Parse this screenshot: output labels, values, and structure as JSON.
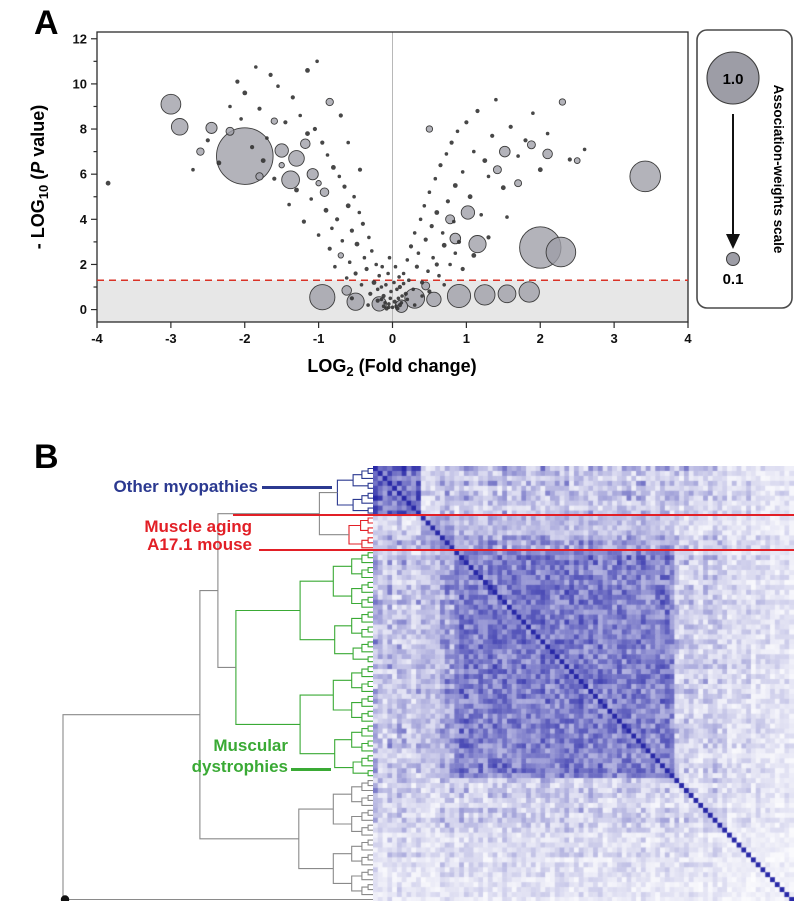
{
  "chart_data": [
    {
      "type": "scatter",
      "panel_label": "A",
      "title": "",
      "xlabel": "LOG2 (Fold change)",
      "ylabel": "- LOG10 (P value)",
      "x_axis": {
        "main": "LOG",
        "sub": "2",
        "rest": " (Fold change)"
      },
      "y_axis": {
        "prefix": "- LOG",
        "sub": "10",
        "open": " (",
        "pvar": "P",
        "close": " value)"
      },
      "xlim": [
        -4,
        4
      ],
      "ylim": [
        -0.55,
        12.3
      ],
      "x_ticks": [
        -4,
        -3,
        -2,
        -1,
        0,
        1,
        2,
        3,
        4
      ],
      "y_ticks": [
        0,
        1,
        2,
        3,
        4,
        5,
        6,
        7,
        8,
        9,
        10,
        11,
        12
      ],
      "y_tick_labels": [
        0,
        2,
        4,
        6,
        8,
        10,
        12
      ],
      "threshold_y": 1.3,
      "colors": {
        "threshold": "#d93226",
        "region": "#e7e7e7",
        "bubble_fill": "#9d9da6",
        "bubble_stroke": "#3c3c3c",
        "dot": "#333333",
        "zero_line": "#b8b8b8",
        "box": "#2b2b2b"
      },
      "legend": {
        "title": "Association-weights scale",
        "max_label": "1.0",
        "min_label": "0.1"
      },
      "points": [
        [
          -2.0,
          6.8,
          1.0
        ],
        [
          -3.0,
          9.1,
          0.32
        ],
        [
          -2.88,
          8.1,
          0.26
        ],
        [
          -2.45,
          8.05,
          0.16
        ],
        [
          -2.2,
          7.9,
          0.1
        ],
        [
          -2.6,
          7.0,
          0.09
        ],
        [
          -1.5,
          7.05,
          0.2
        ],
        [
          -1.3,
          6.7,
          0.24
        ],
        [
          -1.18,
          7.35,
          0.13
        ],
        [
          -1.08,
          6.0,
          0.16
        ],
        [
          -1.38,
          5.75,
          0.28
        ],
        [
          -0.92,
          5.2,
          0.11
        ],
        [
          -1.8,
          5.9,
          0.09
        ],
        [
          3.42,
          5.9,
          0.52
        ],
        [
          2.0,
          2.75,
          0.72
        ],
        [
          2.28,
          2.55,
          0.5
        ],
        [
          1.15,
          2.9,
          0.27
        ],
        [
          0.85,
          3.15,
          0.15
        ],
        [
          2.1,
          6.9,
          0.13
        ],
        [
          1.88,
          7.3,
          0.1
        ],
        [
          1.52,
          7.0,
          0.15
        ],
        [
          1.42,
          6.2,
          0.1
        ],
        [
          2.3,
          9.2,
          0.07
        ],
        [
          1.02,
          4.3,
          0.2
        ],
        [
          0.78,
          4.0,
          0.12
        ],
        [
          -0.85,
          9.2,
          0.09
        ],
        [
          -1.6,
          8.35,
          0.07
        ],
        [
          0.5,
          8.0,
          0.07
        ],
        [
          1.7,
          5.6,
          0.08
        ],
        [
          2.5,
          6.6,
          0.06
        ],
        [
          -0.95,
          0.55,
          0.42
        ],
        [
          -0.5,
          0.35,
          0.27
        ],
        [
          -0.18,
          0.25,
          0.22
        ],
        [
          0.3,
          0.5,
          0.32
        ],
        [
          0.56,
          0.45,
          0.22
        ],
        [
          0.9,
          0.6,
          0.38
        ],
        [
          1.25,
          0.65,
          0.33
        ],
        [
          1.55,
          0.7,
          0.28
        ],
        [
          1.85,
          0.78,
          0.33
        ],
        [
          0.12,
          0.15,
          0.18
        ],
        [
          -0.62,
          0.85,
          0.13
        ],
        [
          0.45,
          1.05,
          0.1
        ],
        [
          -3.85,
          5.6,
          0.04
        ],
        [
          -0.05,
          0.1,
          0.02
        ],
        [
          -0.1,
          0.3,
          0.02
        ],
        [
          -0.12,
          0.6,
          0.03
        ],
        [
          -0.15,
          1.0,
          0.02
        ],
        [
          -0.18,
          1.5,
          0.02
        ],
        [
          -0.2,
          0.4,
          0.03
        ],
        [
          -0.22,
          2.0,
          0.02
        ],
        [
          -0.25,
          1.2,
          0.04
        ],
        [
          -0.28,
          2.6,
          0.02
        ],
        [
          -0.3,
          0.7,
          0.03
        ],
        [
          -0.32,
          3.2,
          0.02
        ],
        [
          -0.35,
          1.8,
          0.03
        ],
        [
          -0.38,
          2.3,
          0.02
        ],
        [
          -0.4,
          3.8,
          0.03
        ],
        [
          -0.42,
          1.1,
          0.02
        ],
        [
          -0.45,
          4.3,
          0.02
        ],
        [
          -0.48,
          2.9,
          0.04
        ],
        [
          -0.5,
          1.6,
          0.03
        ],
        [
          -0.52,
          5.0,
          0.02
        ],
        [
          -0.55,
          3.5,
          0.03
        ],
        [
          -0.58,
          2.1,
          0.02
        ],
        [
          -0.6,
          4.6,
          0.04
        ],
        [
          -0.62,
          1.4,
          0.02
        ],
        [
          -0.65,
          5.45,
          0.03
        ],
        [
          -0.68,
          3.05,
          0.02
        ],
        [
          -0.7,
          2.4,
          0.05
        ],
        [
          -0.72,
          5.9,
          0.02
        ],
        [
          -0.75,
          4.0,
          0.03
        ],
        [
          -0.78,
          1.9,
          0.02
        ],
        [
          -0.8,
          6.3,
          0.04
        ],
        [
          -0.82,
          3.6,
          0.02
        ],
        [
          -0.85,
          2.7,
          0.03
        ],
        [
          -0.88,
          6.85,
          0.02
        ],
        [
          -0.9,
          4.4,
          0.04
        ],
        [
          -0.95,
          7.4,
          0.03
        ],
        [
          -1.0,
          3.3,
          0.02
        ],
        [
          -1.0,
          5.6,
          0.05
        ],
        [
          -1.05,
          8.0,
          0.03
        ],
        [
          -1.1,
          4.9,
          0.02
        ],
        [
          -1.15,
          7.8,
          0.04
        ],
        [
          -1.2,
          3.9,
          0.03
        ],
        [
          -1.25,
          8.6,
          0.02
        ],
        [
          -1.3,
          5.3,
          0.04
        ],
        [
          -1.35,
          9.4,
          0.03
        ],
        [
          -1.4,
          4.65,
          0.02
        ],
        [
          -1.45,
          8.3,
          0.03
        ],
        [
          -1.5,
          6.4,
          0.05
        ],
        [
          -1.55,
          9.9,
          0.02
        ],
        [
          -1.6,
          5.8,
          0.03
        ],
        [
          -1.65,
          10.4,
          0.03
        ],
        [
          -1.7,
          7.6,
          0.02
        ],
        [
          -1.75,
          6.6,
          0.04
        ],
        [
          -1.8,
          8.9,
          0.03
        ],
        [
          -1.85,
          10.75,
          0.02
        ],
        [
          -1.9,
          7.2,
          0.03
        ],
        [
          -2.0,
          9.6,
          0.04
        ],
        [
          -2.05,
          8.45,
          0.02
        ],
        [
          -2.1,
          10.1,
          0.03
        ],
        [
          -2.2,
          9.0,
          0.02
        ],
        [
          -2.35,
          6.5,
          0.04
        ],
        [
          -2.5,
          7.5,
          0.03
        ],
        [
          -2.7,
          6.2,
          0.02
        ],
        [
          -0.33,
          0.2,
          0.02
        ],
        [
          -0.2,
          0.9,
          0.02
        ],
        [
          -0.55,
          0.5,
          0.03
        ],
        [
          -1.15,
          10.6,
          0.04
        ],
        [
          -1.02,
          11.0,
          0.02
        ],
        [
          -0.7,
          8.6,
          0.03
        ],
        [
          -0.6,
          7.4,
          0.02
        ],
        [
          -0.44,
          6.2,
          0.03
        ],
        [
          0.05,
          0.15,
          0.02
        ],
        [
          0.08,
          0.5,
          0.02
        ],
        [
          0.1,
          1.0,
          0.03
        ],
        [
          0.12,
          0.3,
          0.02
        ],
        [
          0.15,
          1.6,
          0.02
        ],
        [
          0.18,
          0.7,
          0.03
        ],
        [
          0.2,
          2.2,
          0.02
        ],
        [
          0.22,
          1.3,
          0.02
        ],
        [
          0.25,
          2.8,
          0.03
        ],
        [
          0.28,
          0.9,
          0.02
        ],
        [
          0.3,
          3.4,
          0.02
        ],
        [
          0.33,
          1.9,
          0.03
        ],
        [
          0.35,
          2.5,
          0.02
        ],
        [
          0.38,
          4.0,
          0.02
        ],
        [
          0.4,
          1.2,
          0.03
        ],
        [
          0.43,
          4.6,
          0.02
        ],
        [
          0.45,
          3.1,
          0.03
        ],
        [
          0.48,
          1.7,
          0.02
        ],
        [
          0.5,
          5.2,
          0.02
        ],
        [
          0.53,
          3.7,
          0.03
        ],
        [
          0.55,
          2.3,
          0.02
        ],
        [
          0.58,
          5.8,
          0.02
        ],
        [
          0.6,
          4.3,
          0.04
        ],
        [
          0.63,
          1.5,
          0.02
        ],
        [
          0.65,
          6.4,
          0.03
        ],
        [
          0.68,
          3.4,
          0.02
        ],
        [
          0.7,
          2.85,
          0.04
        ],
        [
          0.73,
          6.9,
          0.02
        ],
        [
          0.75,
          4.8,
          0.03
        ],
        [
          0.78,
          2.0,
          0.02
        ],
        [
          0.8,
          7.4,
          0.03
        ],
        [
          0.83,
          3.9,
          0.02
        ],
        [
          0.85,
          5.5,
          0.04
        ],
        [
          0.88,
          7.9,
          0.02
        ],
        [
          0.9,
          3.0,
          0.03
        ],
        [
          0.95,
          6.1,
          0.02
        ],
        [
          1.0,
          8.3,
          0.03
        ],
        [
          1.05,
          5.0,
          0.04
        ],
        [
          1.1,
          7.0,
          0.02
        ],
        [
          1.15,
          8.8,
          0.03
        ],
        [
          1.2,
          4.2,
          0.02
        ],
        [
          1.25,
          6.6,
          0.04
        ],
        [
          1.3,
          5.9,
          0.02
        ],
        [
          1.35,
          7.7,
          0.03
        ],
        [
          1.4,
          9.3,
          0.02
        ],
        [
          1.5,
          5.4,
          0.04
        ],
        [
          1.6,
          8.1,
          0.03
        ],
        [
          1.7,
          6.8,
          0.02
        ],
        [
          1.8,
          7.5,
          0.03
        ],
        [
          1.9,
          8.7,
          0.02
        ],
        [
          2.0,
          6.2,
          0.04
        ],
        [
          2.1,
          7.8,
          0.02
        ],
        [
          2.4,
          6.65,
          0.03
        ],
        [
          2.6,
          7.1,
          0.02
        ],
        [
          0.3,
          0.2,
          0.02
        ],
        [
          0.5,
          0.8,
          0.03
        ],
        [
          0.7,
          1.1,
          0.02
        ],
        [
          0.2,
          0.45,
          0.02
        ],
        [
          0.95,
          1.8,
          0.03
        ],
        [
          1.1,
          2.4,
          0.04
        ],
        [
          1.3,
          3.2,
          0.03
        ],
        [
          1.55,
          4.1,
          0.02
        ],
        [
          0.6,
          2.0,
          0.03
        ],
        [
          0.4,
          0.6,
          0.02
        ],
        [
          0.85,
          2.5,
          0.02
        ],
        [
          -0.08,
          0.05,
          0.03
        ],
        [
          -0.05,
          0.25,
          0.02
        ],
        [
          0.0,
          0.1,
          0.02
        ],
        [
          0.03,
          0.35,
          0.03
        ],
        [
          -0.12,
          0.15,
          0.02
        ],
        [
          0.07,
          0.05,
          0.02
        ],
        [
          -0.03,
          0.5,
          0.02
        ],
        [
          0.1,
          0.2,
          0.03
        ],
        [
          -0.15,
          0.45,
          0.02
        ],
        [
          0.13,
          0.6,
          0.02
        ],
        [
          -0.02,
          0.8,
          0.02
        ],
        [
          0.02,
          1.2,
          0.02
        ],
        [
          -0.06,
          1.6,
          0.02
        ],
        [
          0.06,
          0.9,
          0.02
        ],
        [
          -0.09,
          1.1,
          0.02
        ],
        [
          0.04,
          1.9,
          0.02
        ],
        [
          -0.04,
          2.3,
          0.02
        ],
        [
          0.09,
          1.45,
          0.02
        ],
        [
          -0.14,
          1.9,
          0.02
        ],
        [
          0.15,
          1.15,
          0.02
        ]
      ]
    },
    {
      "type": "heatmap",
      "panel_label": "B",
      "labels": {
        "other_myopathies": {
          "text": "Other myopathies",
          "color": "#2b3990"
        },
        "muscle_aging": {
          "text": "Muscle aging",
          "color": "#e21f26"
        },
        "a17_mouse": {
          "text": "A17.1 mouse",
          "color": "#e21f26"
        },
        "muscular_dystrophies": {
          "text": "Muscular dystrophies",
          "color": "#3aaa35"
        }
      },
      "dendrogram_color": "#8a8a8a",
      "divider_color": "#e21f26",
      "heatmap": {
        "n": 88,
        "seed": 7,
        "low_color": "#ffffff",
        "high_color": "#2828a5",
        "clusters": [
          {
            "name": "other-myopathies",
            "start": 0,
            "end": 9,
            "color": "#2b3990",
            "within": 0.62
          },
          {
            "name": "muscle-aging-a17",
            "start": 10,
            "end": 16,
            "color": "#e21f26",
            "within": 0.38
          },
          {
            "name": "muscular-dystrophies",
            "start": 17,
            "end": 62,
            "color": "#3aaa35",
            "within": 0.52
          },
          {
            "name": "unclustered",
            "start": 63,
            "end": 87,
            "color": "#8a8a8a",
            "within": 0
          }
        ],
        "divider_rows": [
          10,
          17
        ]
      }
    }
  ]
}
